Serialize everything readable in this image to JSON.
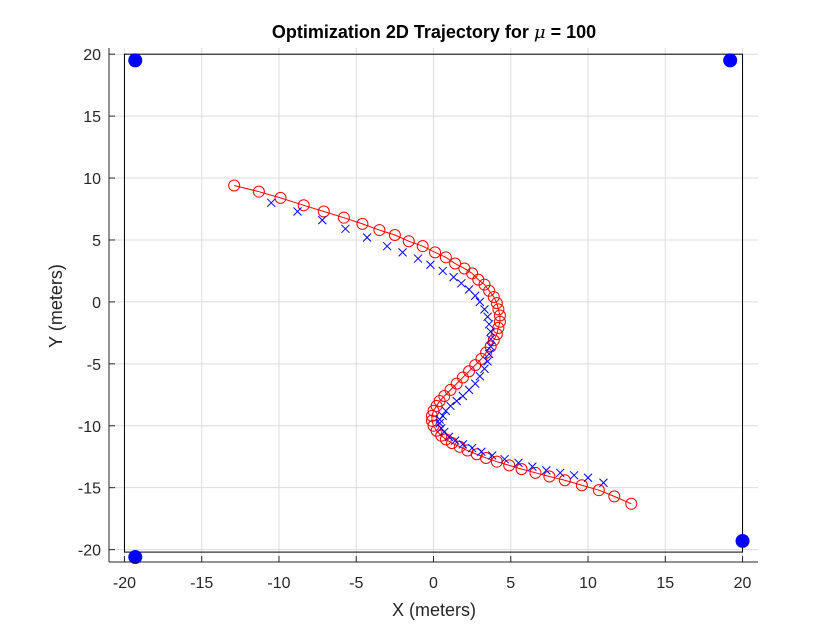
{
  "chart_data": {
    "type": "scatter",
    "title_prefix": "Optimization 2D Trajectory for ",
    "title_symbol": "μ",
    "title_suffix": " = 100",
    "xlabel": "X (meters)",
    "ylabel": "Y (meters)",
    "xlim": [
      -21,
      21
    ],
    "ylim": [
      -21,
      20.5
    ],
    "xticks": [
      -20,
      -15,
      -10,
      -5,
      0,
      5,
      10,
      15,
      20
    ],
    "yticks": [
      -20,
      -15,
      -10,
      -5,
      0,
      5,
      10,
      15,
      20
    ],
    "grid": true,
    "colors": {
      "anchors": "#0000ff",
      "estimate": "#0000ff",
      "optimized": "#ff0000",
      "box": "#000000",
      "grid": "#dcdcdc"
    },
    "boundary_box": {
      "x": [
        -20,
        20
      ],
      "y": [
        -20.2,
        20
      ]
    },
    "anchors": {
      "x": [
        -19.3,
        19.2,
        -19.3,
        20.0
      ],
      "y": [
        19.5,
        19.5,
        -20.6,
        -19.3
      ]
    },
    "estimate_path": {
      "x": [
        -10.5,
        -8.8,
        -7.2,
        -5.7,
        -4.3,
        -3.0,
        -2.0,
        -1.0,
        -0.2,
        0.6,
        1.3,
        1.8,
        2.3,
        2.7,
        3.0,
        3.3,
        3.5,
        3.6,
        3.7,
        3.7,
        3.7,
        3.6,
        3.5,
        3.3,
        3.0,
        2.7,
        2.3,
        1.9,
        1.5,
        1.1,
        0.8,
        0.6,
        0.4,
        0.4,
        0.5,
        0.7,
        1.0,
        1.4,
        1.9,
        2.5,
        3.1,
        3.8,
        4.6,
        5.5,
        6.4,
        7.3,
        8.2,
        9.1,
        10.0,
        11.0
      ],
      "y": [
        8.0,
        7.3,
        6.6,
        5.9,
        5.2,
        4.5,
        4.0,
        3.5,
        3.0,
        2.5,
        2.0,
        1.5,
        1.0,
        0.5,
        0.0,
        -0.6,
        -1.2,
        -1.8,
        -2.4,
        -3.0,
        -3.6,
        -4.2,
        -4.8,
        -5.4,
        -6.0,
        -6.6,
        -7.1,
        -7.6,
        -8.0,
        -8.4,
        -8.8,
        -9.2,
        -9.5,
        -9.8,
        -10.2,
        -10.5,
        -10.9,
        -11.2,
        -11.5,
        -11.8,
        -12.1,
        -12.4,
        -12.7,
        -13.0,
        -13.3,
        -13.6,
        -13.8,
        -14.0,
        -14.2,
        -14.6
      ]
    },
    "optimized_path": {
      "x": [
        -12.9,
        -11.3,
        -9.9,
        -8.4,
        -7.1,
        -5.8,
        -4.6,
        -3.5,
        -2.5,
        -1.6,
        -0.7,
        0.1,
        0.8,
        1.4,
        2.0,
        2.5,
        2.9,
        3.3,
        3.6,
        3.9,
        4.1,
        4.2,
        4.3,
        4.3,
        4.2,
        4.1,
        3.9,
        3.7,
        3.4,
        3.1,
        2.7,
        2.3,
        1.9,
        1.5,
        1.1,
        0.7,
        0.4,
        0.2,
        0.0,
        -0.1,
        -0.1,
        0.0,
        0.2,
        0.5,
        0.8,
        1.2,
        1.7,
        2.2,
        2.8,
        3.4,
        4.1,
        4.9,
        5.7,
        6.6,
        7.5,
        8.5,
        9.6,
        10.7,
        11.7,
        12.8
      ],
      "y": [
        9.4,
        8.9,
        8.4,
        7.8,
        7.3,
        6.8,
        6.3,
        5.8,
        5.4,
        4.9,
        4.5,
        4.0,
        3.6,
        3.1,
        2.7,
        2.3,
        1.8,
        1.4,
        0.9,
        0.4,
        -0.1,
        -0.6,
        -1.1,
        -1.6,
        -2.1,
        -2.6,
        -3.1,
        -3.6,
        -4.1,
        -4.6,
        -5.1,
        -5.6,
        -6.1,
        -6.6,
        -7.1,
        -7.6,
        -8.0,
        -8.4,
        -8.8,
        -9.2,
        -9.6,
        -10.0,
        -10.4,
        -10.8,
        -11.1,
        -11.4,
        -11.7,
        -12.0,
        -12.3,
        -12.6,
        -12.9,
        -13.2,
        -13.5,
        -13.8,
        -14.1,
        -14.4,
        -14.8,
        -15.2,
        -15.7,
        -16.3
      ]
    }
  }
}
